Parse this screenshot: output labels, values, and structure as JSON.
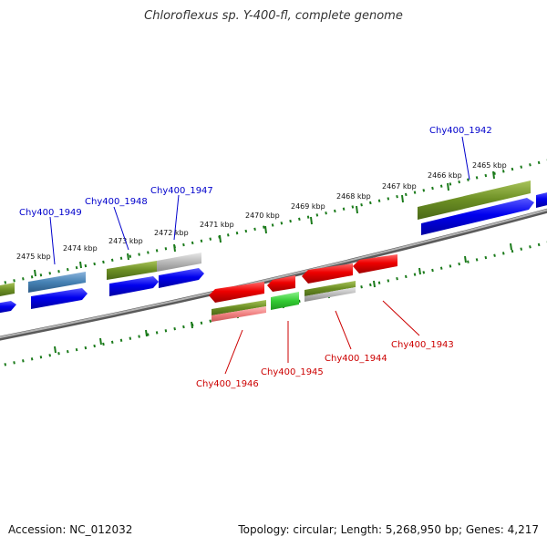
{
  "title": "Chloroflexus sp. Y-400-fl, complete genome",
  "footer": {
    "accession": "Accession: NC_012032",
    "topology": "Topology: circular; Length: 5,268,950 bp; Genes: 4,217"
  },
  "colors": {
    "forward_strand_label": "#0000cc",
    "reverse_strand_label": "#cc0000",
    "cds_blue": "#0000ee",
    "cds_red": "#ee0000",
    "gene_olive": "#6b8e23",
    "gene_gray": "#b0b0b0",
    "gene_steel": "#4682b4",
    "gene_green": "#33cc33",
    "gene_salmon": "#f08080",
    "tick_green": "#1a7a1a",
    "backbone": "#808080"
  },
  "scale_ticks": [
    {
      "label": "2475 kbp"
    },
    {
      "label": "2474 kbp"
    },
    {
      "label": "2473 kbp"
    },
    {
      "label": "2472 kbp"
    },
    {
      "label": "2471 kbp"
    },
    {
      "label": "2470 kbp"
    },
    {
      "label": "2469 kbp"
    },
    {
      "label": "2468 kbp"
    },
    {
      "label": "2467 kbp"
    },
    {
      "label": "2466 kbp"
    },
    {
      "label": "2465 kbp"
    }
  ],
  "forward_genes": [
    {
      "label": "Chy400_1949"
    },
    {
      "label": "Chy400_1948"
    },
    {
      "label": "Chy400_1947"
    },
    {
      "label": "Chy400_1942"
    }
  ],
  "reverse_genes": [
    {
      "label": "Chy400_1946"
    },
    {
      "label": "Chy400_1945"
    },
    {
      "label": "Chy400_1944"
    },
    {
      "label": "Chy400_1943"
    }
  ]
}
